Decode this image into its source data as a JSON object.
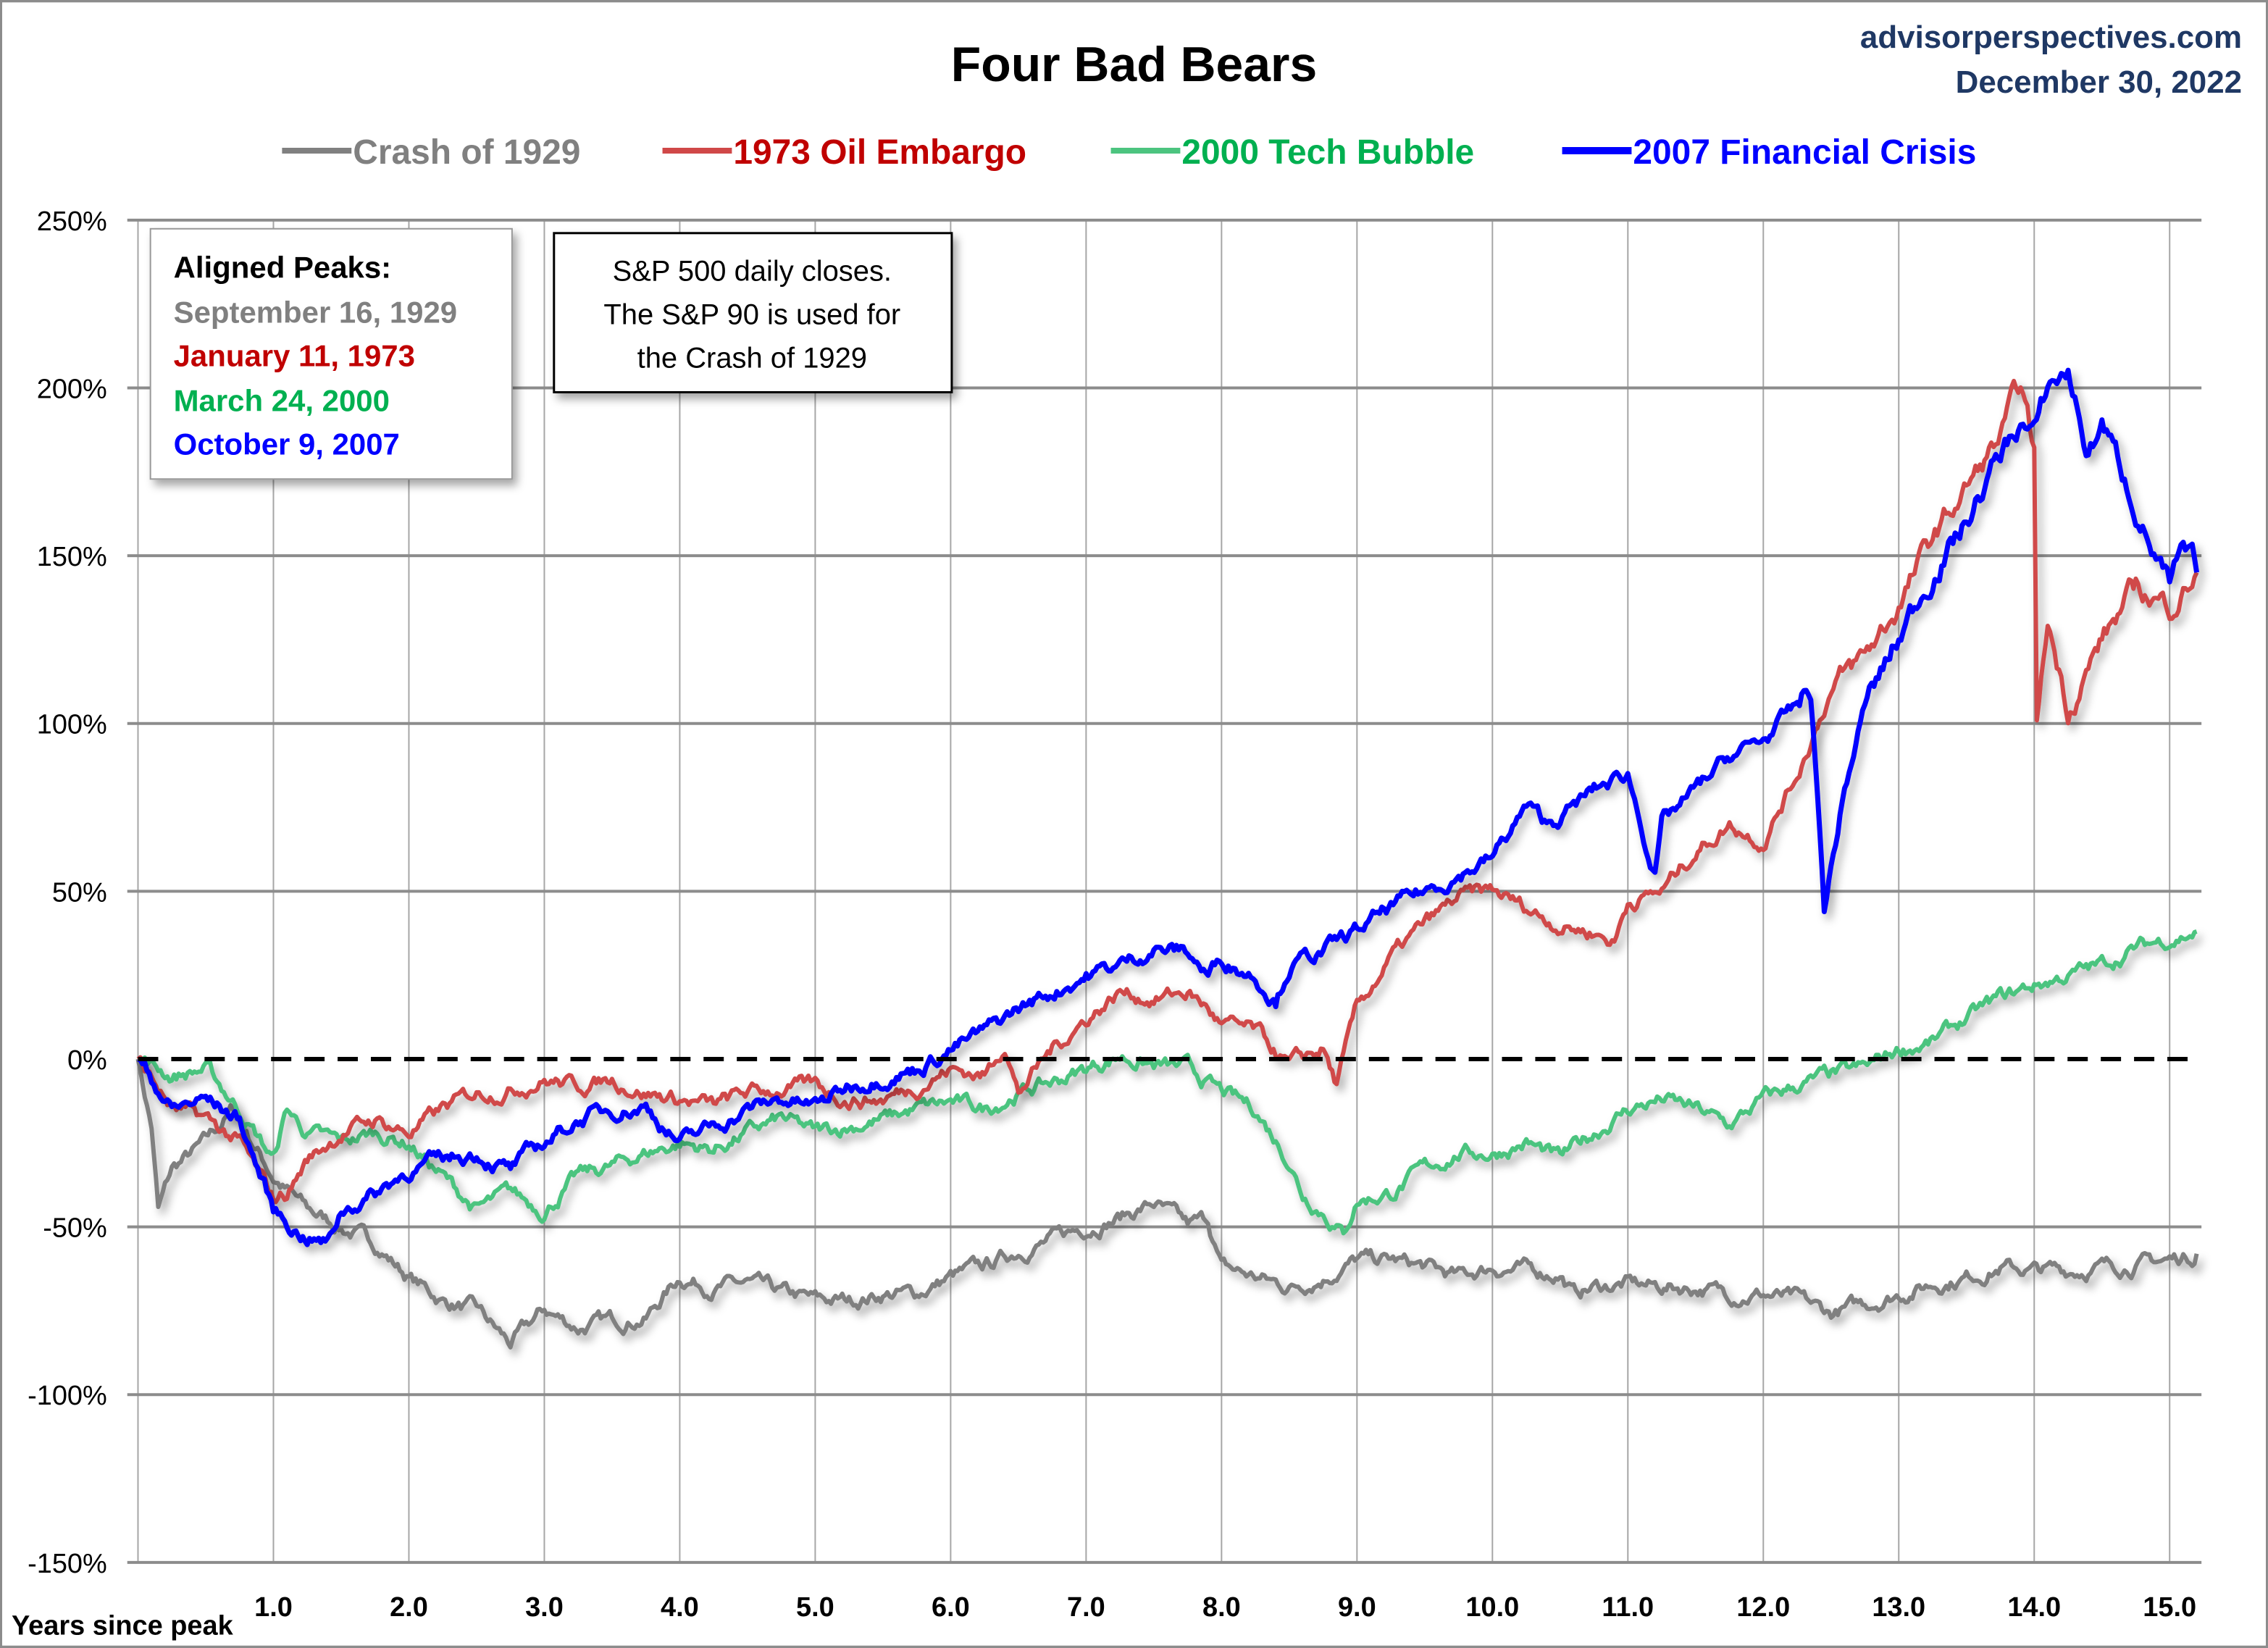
{
  "header": {
    "source": "advisorperspectives.com",
    "date": "December 30, 2022"
  },
  "notes": {
    "peaks_title": "Aligned Peaks:",
    "peaks": [
      {
        "label": "September  16, 1929",
        "color": "#808080"
      },
      {
        "label": "January 11, 1973",
        "color": "#C00000"
      },
      {
        "label": "March 24, 2000",
        "color": "#00B050"
      },
      {
        "label": "October 9, 2007",
        "color": "#0000FF"
      }
    ],
    "source_note": [
      "S&P 500 daily closes.",
      "The S&P 90 is used for",
      "the Crash of 1929"
    ]
  },
  "chart_data": {
    "type": "line",
    "title": "Four Bad Bears",
    "xlabel": "Years since peak",
    "ylabel": "",
    "xlim": [
      0,
      15.25
    ],
    "ylim": [
      -150,
      250
    ],
    "xticks": [
      "1.0",
      "2.0",
      "3.0",
      "4.0",
      "5.0",
      "6.0",
      "7.0",
      "8.0",
      "9.0",
      "10.0",
      "11.0",
      "12.0",
      "13.0",
      "14.0",
      "15.0"
    ],
    "xtick_values": [
      1,
      2,
      3,
      4,
      5,
      6,
      7,
      8,
      9,
      10,
      11,
      12,
      13,
      14,
      15
    ],
    "yticks": [
      "250%",
      "200%",
      "150%",
      "100%",
      "50%",
      "0%",
      "-50%",
      "-100%",
      "-150%"
    ],
    "ytick_values": [
      250,
      200,
      150,
      100,
      50,
      0,
      -50,
      -100,
      -150
    ],
    "grid": true,
    "legend_position": "top",
    "reference_line": {
      "y": 0,
      "style": "dashed"
    },
    "series": [
      {
        "name": "Crash of 1929",
        "color": "#808080",
        "legend_text_color": "#808080",
        "points": [
          [
            0,
            0
          ],
          [
            0.1,
            -20
          ],
          [
            0.15,
            -45
          ],
          [
            0.25,
            -33
          ],
          [
            0.5,
            -25
          ],
          [
            0.7,
            -15
          ],
          [
            1.0,
            -35
          ],
          [
            1.25,
            -45
          ],
          [
            1.5,
            -50
          ],
          [
            1.75,
            -55
          ],
          [
            2.0,
            -65
          ],
          [
            2.25,
            -72
          ],
          [
            2.5,
            -75
          ],
          [
            2.75,
            -85
          ],
          [
            3.0,
            -75
          ],
          [
            3.25,
            -80
          ],
          [
            3.5,
            -78
          ],
          [
            3.75,
            -77
          ],
          [
            4.0,
            -65
          ],
          [
            4.25,
            -68
          ],
          [
            4.5,
            -67
          ],
          [
            4.75,
            -70
          ],
          [
            5.0,
            -72
          ],
          [
            5.25,
            -72
          ],
          [
            5.5,
            -70
          ],
          [
            5.75,
            -70
          ],
          [
            6.0,
            -65
          ],
          [
            6.25,
            -62
          ],
          [
            6.5,
            -57
          ],
          [
            6.75,
            -54
          ],
          [
            7.0,
            -50
          ],
          [
            7.25,
            -47
          ],
          [
            7.5,
            -43
          ],
          [
            7.75,
            -50
          ],
          [
            7.9,
            -48
          ],
          [
            8.0,
            -62
          ],
          [
            8.25,
            -65
          ],
          [
            8.5,
            -68
          ],
          [
            8.75,
            -65
          ],
          [
            9.0,
            -60
          ],
          [
            9.25,
            -60
          ],
          [
            9.5,
            -62
          ],
          [
            9.75,
            -65
          ],
          [
            10.0,
            -62
          ],
          [
            10.25,
            -63
          ],
          [
            10.5,
            -64
          ],
          [
            10.6,
            -70
          ],
          [
            10.75,
            -68
          ],
          [
            11.0,
            -67
          ],
          [
            11.25,
            -68
          ],
          [
            11.5,
            -68
          ],
          [
            11.75,
            -70
          ],
          [
            12.0,
            -70
          ],
          [
            12.25,
            -72
          ],
          [
            12.5,
            -76
          ],
          [
            12.75,
            -73
          ],
          [
            13.0,
            -70
          ],
          [
            13.25,
            -67
          ],
          [
            13.5,
            -65
          ],
          [
            13.75,
            -62
          ],
          [
            14.0,
            -63
          ],
          [
            14.25,
            -63
          ],
          [
            14.5,
            -62
          ],
          [
            14.75,
            -61
          ],
          [
            15.0,
            -60
          ],
          [
            15.2,
            -58
          ]
        ]
      },
      {
        "name": "1973 Oil Embargo",
        "color": "#D04848",
        "legend_text_color": "#C00000",
        "points": [
          [
            0,
            0
          ],
          [
            0.25,
            -15
          ],
          [
            0.5,
            -18
          ],
          [
            0.75,
            -25
          ],
          [
            1.0,
            -42
          ],
          [
            1.1,
            -40
          ],
          [
            1.25,
            -30
          ],
          [
            1.5,
            -22
          ],
          [
            1.75,
            -18
          ],
          [
            2.0,
            -22
          ],
          [
            2.25,
            -15
          ],
          [
            2.5,
            -10
          ],
          [
            2.75,
            -9
          ],
          [
            3.0,
            -6
          ],
          [
            3.25,
            -8
          ],
          [
            3.5,
            -6
          ],
          [
            3.75,
            -10
          ],
          [
            4.0,
            -12
          ],
          [
            4.25,
            -14
          ],
          [
            4.5,
            -10
          ],
          [
            4.75,
            -9
          ],
          [
            5.0,
            -8
          ],
          [
            5.25,
            -12
          ],
          [
            5.5,
            -12
          ],
          [
            5.75,
            -8
          ],
          [
            6.0,
            -3
          ],
          [
            6.25,
            -5
          ],
          [
            6.4,
            5
          ],
          [
            6.5,
            -10
          ],
          [
            6.75,
            3
          ],
          [
            7.0,
            12
          ],
          [
            7.25,
            20
          ],
          [
            7.5,
            18
          ],
          [
            7.75,
            20
          ],
          [
            7.9,
            15
          ],
          [
            8.0,
            10
          ],
          [
            8.25,
            8
          ],
          [
            8.5,
            -2
          ],
          [
            8.75,
            3
          ],
          [
            8.85,
            -8
          ],
          [
            9.0,
            15
          ],
          [
            9.25,
            30
          ],
          [
            9.5,
            40
          ],
          [
            9.75,
            48
          ],
          [
            10.0,
            50
          ],
          [
            10.25,
            45
          ],
          [
            10.5,
            40
          ],
          [
            10.75,
            38
          ],
          [
            10.9,
            35
          ],
          [
            11.0,
            47
          ],
          [
            11.25,
            50
          ],
          [
            11.5,
            62
          ],
          [
            11.75,
            70
          ],
          [
            12.0,
            65
          ],
          [
            12.25,
            85
          ],
          [
            12.5,
            110
          ],
          [
            12.75,
            120
          ],
          [
            13.0,
            135
          ],
          [
            13.25,
            155
          ],
          [
            13.5,
            170
          ],
          [
            13.75,
            185
          ],
          [
            13.9,
            200
          ],
          [
            14.0,
            180
          ],
          [
            14.02,
            100
          ],
          [
            14.1,
            130
          ],
          [
            14.25,
            105
          ],
          [
            14.5,
            125
          ],
          [
            14.75,
            140
          ],
          [
            15.0,
            135
          ],
          [
            15.2,
            145
          ]
        ]
      },
      {
        "name": "2000 Tech Bubble",
        "color": "#4CC47F",
        "legend_text_color": "#00B050",
        "points": [
          [
            0,
            0
          ],
          [
            0.25,
            -5
          ],
          [
            0.5,
            -3
          ],
          [
            0.75,
            -15
          ],
          [
            1.0,
            -30
          ],
          [
            1.1,
            -15
          ],
          [
            1.25,
            -22
          ],
          [
            1.5,
            -25
          ],
          [
            1.75,
            -22
          ],
          [
            2.0,
            -25
          ],
          [
            2.25,
            -35
          ],
          [
            2.5,
            -45
          ],
          [
            2.75,
            -40
          ],
          [
            3.0,
            -45
          ],
          [
            3.25,
            -35
          ],
          [
            3.5,
            -32
          ],
          [
            3.75,
            -28
          ],
          [
            4.0,
            -25
          ],
          [
            4.25,
            -27
          ],
          [
            4.5,
            -22
          ],
          [
            4.75,
            -18
          ],
          [
            5.0,
            -22
          ],
          [
            5.25,
            -20
          ],
          [
            5.5,
            -18
          ],
          [
            5.75,
            -15
          ],
          [
            6.0,
            -13
          ],
          [
            6.25,
            -15
          ],
          [
            6.5,
            -10
          ],
          [
            6.75,
            -7
          ],
          [
            7.0,
            -3
          ],
          [
            7.25,
            1
          ],
          [
            7.5,
            -2
          ],
          [
            7.75,
            -3
          ],
          [
            8.0,
            -10
          ],
          [
            8.25,
            -15
          ],
          [
            8.5,
            -30
          ],
          [
            8.6,
            -40
          ],
          [
            8.75,
            -45
          ],
          [
            8.9,
            -52
          ],
          [
            9.0,
            -42
          ],
          [
            9.25,
            -40
          ],
          [
            9.5,
            -33
          ],
          [
            9.75,
            -28
          ],
          [
            10.0,
            -28
          ],
          [
            10.25,
            -25
          ],
          [
            10.5,
            -30
          ],
          [
            10.75,
            -22
          ],
          [
            11.0,
            -15
          ],
          [
            11.25,
            -12
          ],
          [
            11.5,
            -15
          ],
          [
            11.75,
            -20
          ],
          [
            12.0,
            -12
          ],
          [
            12.25,
            -8
          ],
          [
            12.5,
            -5
          ],
          [
            12.75,
            -3
          ],
          [
            13.0,
            3
          ],
          [
            13.25,
            5
          ],
          [
            13.5,
            12
          ],
          [
            13.75,
            18
          ],
          [
            14.0,
            22
          ],
          [
            14.25,
            25
          ],
          [
            14.5,
            28
          ],
          [
            14.75,
            33
          ],
          [
            15.0,
            36
          ],
          [
            15.2,
            38
          ]
        ]
      },
      {
        "name": "2007 Financial Crisis",
        "color": "#0000FF",
        "legend_text_color": "#0000FF",
        "points": [
          [
            0,
            0
          ],
          [
            0.25,
            -15
          ],
          [
            0.5,
            -12
          ],
          [
            0.75,
            -18
          ],
          [
            1.0,
            -45
          ],
          [
            1.2,
            -52
          ],
          [
            1.4,
            -55
          ],
          [
            1.5,
            -45
          ],
          [
            1.75,
            -40
          ],
          [
            2.0,
            -33
          ],
          [
            2.25,
            -30
          ],
          [
            2.5,
            -28
          ],
          [
            2.75,
            -33
          ],
          [
            3.0,
            -25
          ],
          [
            3.25,
            -18
          ],
          [
            3.5,
            -15
          ],
          [
            3.75,
            -14
          ],
          [
            4.0,
            -25
          ],
          [
            4.25,
            -20
          ],
          [
            4.5,
            -15
          ],
          [
            4.75,
            -12
          ],
          [
            5.0,
            -14
          ],
          [
            5.25,
            -8
          ],
          [
            5.5,
            -5
          ],
          [
            5.75,
            -3
          ],
          [
            6.0,
            3
          ],
          [
            6.25,
            8
          ],
          [
            6.5,
            15
          ],
          [
            6.75,
            20
          ],
          [
            7.0,
            25
          ],
          [
            7.25,
            28
          ],
          [
            7.5,
            33
          ],
          [
            7.75,
            32
          ],
          [
            7.9,
            25
          ],
          [
            8.0,
            30
          ],
          [
            8.25,
            25
          ],
          [
            8.4,
            18
          ],
          [
            8.5,
            28
          ],
          [
            8.75,
            32
          ],
          [
            9.0,
            38
          ],
          [
            9.25,
            45
          ],
          [
            9.5,
            50
          ],
          [
            9.75,
            55
          ],
          [
            10.0,
            60
          ],
          [
            10.25,
            75
          ],
          [
            10.4,
            70
          ],
          [
            10.5,
            72
          ],
          [
            10.75,
            80
          ],
          [
            11.0,
            85
          ],
          [
            11.1,
            70
          ],
          [
            11.2,
            55
          ],
          [
            11.25,
            70
          ],
          [
            11.5,
            80
          ],
          [
            11.75,
            90
          ],
          [
            12.0,
            95
          ],
          [
            12.25,
            105
          ],
          [
            12.35,
            110
          ],
          [
            12.45,
            45
          ],
          [
            12.6,
            80
          ],
          [
            12.75,
            105
          ],
          [
            13.0,
            125
          ],
          [
            13.25,
            145
          ],
          [
            13.5,
            160
          ],
          [
            13.75,
            180
          ],
          [
            13.9,
            190
          ],
          [
            14.0,
            185
          ],
          [
            14.1,
            200
          ],
          [
            14.25,
            205
          ],
          [
            14.4,
            180
          ],
          [
            14.5,
            190
          ],
          [
            14.75,
            165
          ],
          [
            15.0,
            140
          ],
          [
            15.1,
            150
          ],
          [
            15.2,
            145
          ]
        ]
      }
    ]
  }
}
